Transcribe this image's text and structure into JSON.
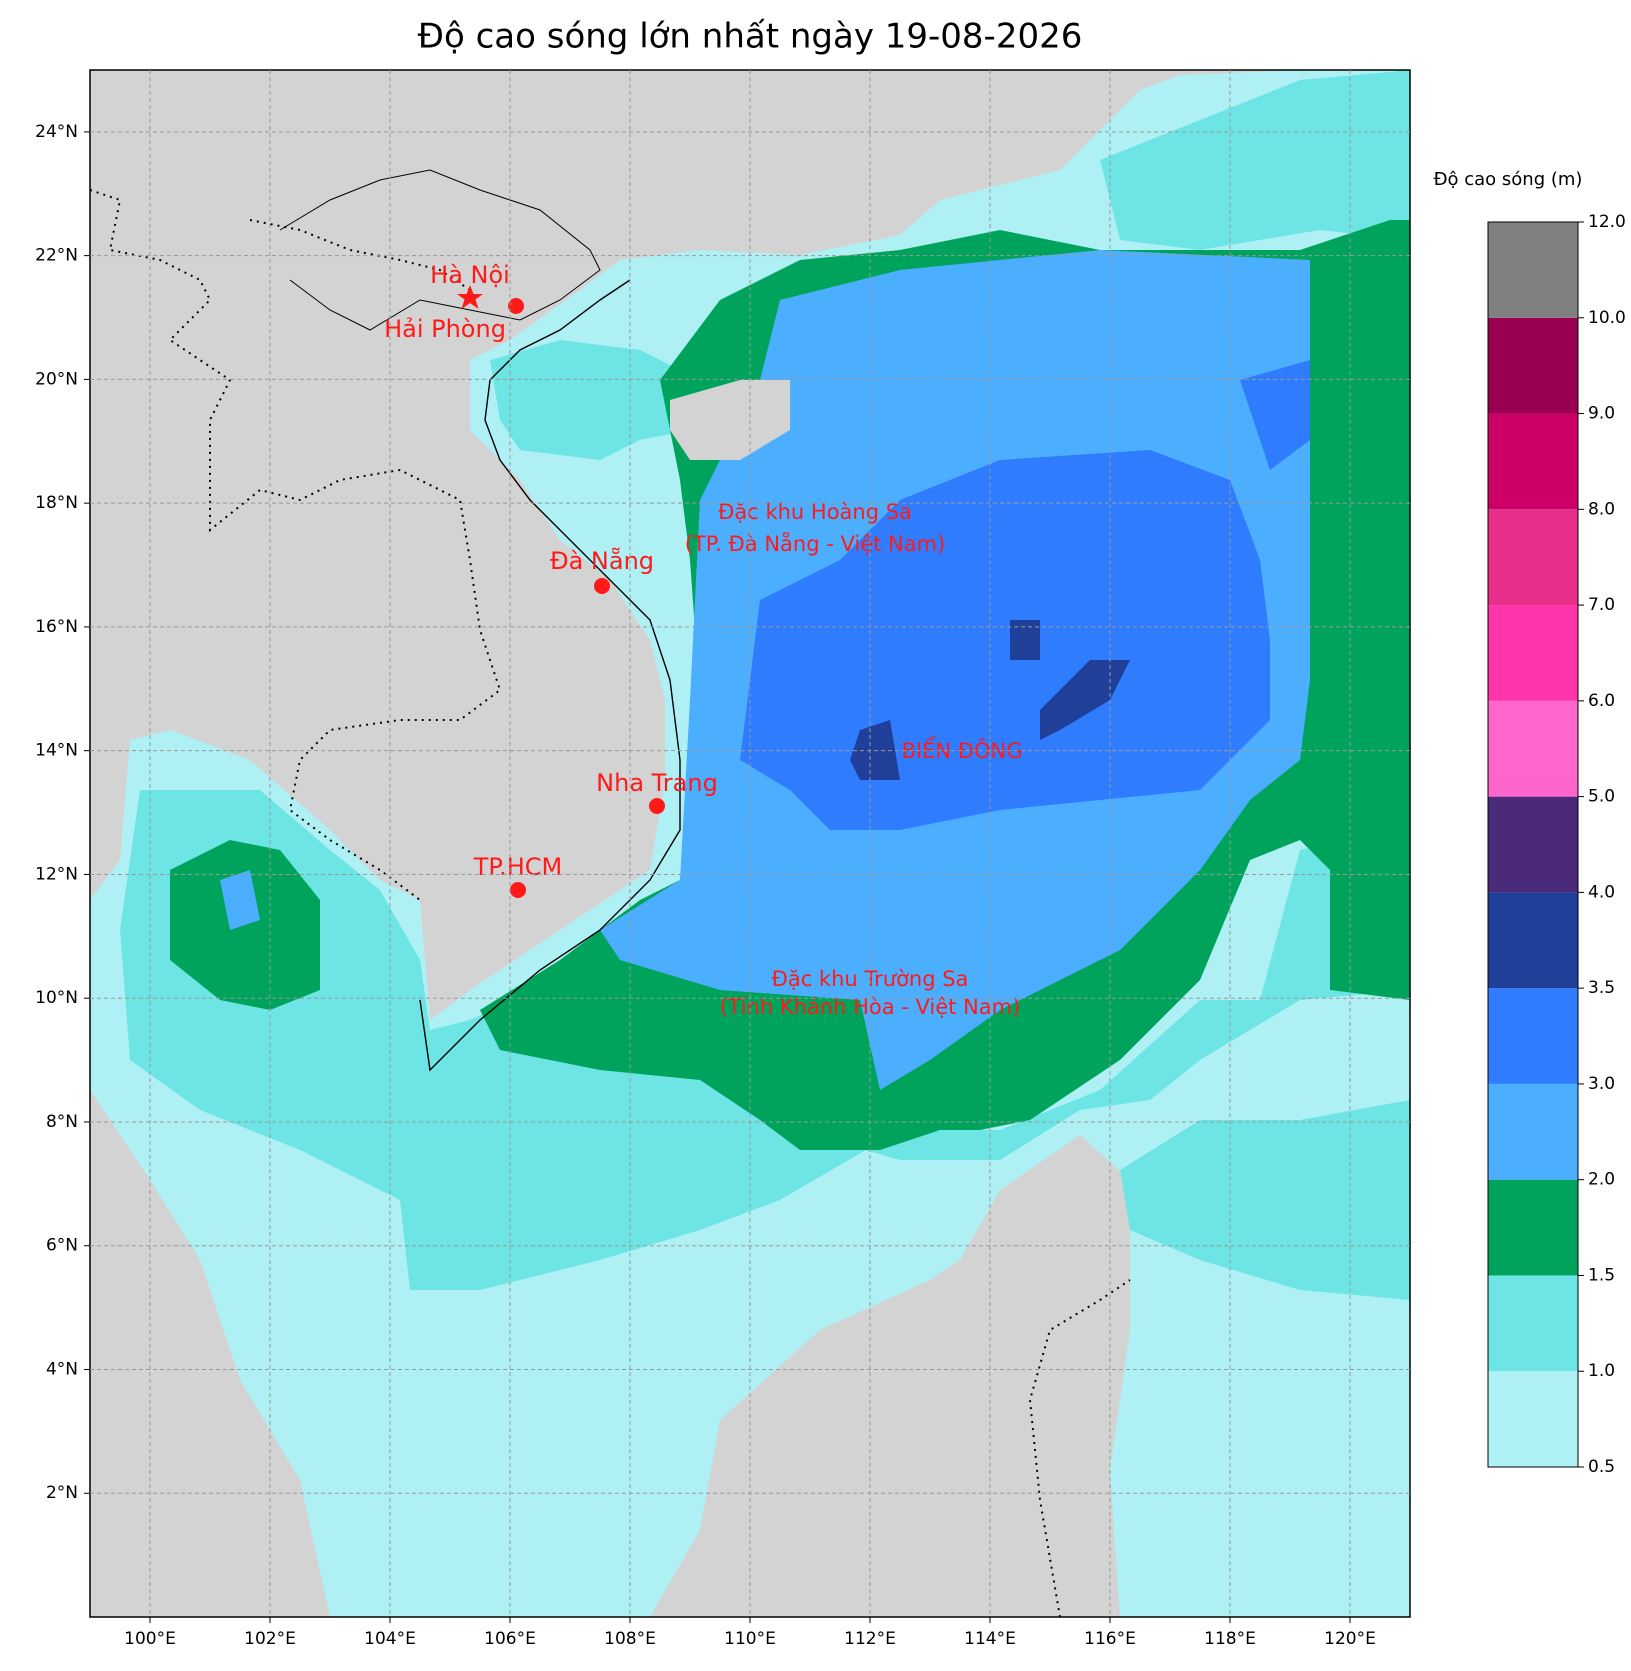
{
  "map": {
    "title": "Độ cao sóng lớn nhất ngày 19-08-2026",
    "xlim": [
      99,
      121
    ],
    "ylim": [
      0,
      25
    ],
    "xticks": [
      {
        "value": 100,
        "label": "100°E"
      },
      {
        "value": 102,
        "label": "102°E"
      },
      {
        "value": 104,
        "label": "104°E"
      },
      {
        "value": 106,
        "label": "106°E"
      },
      {
        "value": 108,
        "label": "108°E"
      },
      {
        "value": 110,
        "label": "110°E"
      },
      {
        "value": 112,
        "label": "112°E"
      },
      {
        "value": 114,
        "label": "114°E"
      },
      {
        "value": 116,
        "label": "116°E"
      },
      {
        "value": 118,
        "label": "118°E"
      },
      {
        "value": 120,
        "label": "120°E"
      }
    ],
    "yticks": [
      {
        "value": 2,
        "label": "2°N"
      },
      {
        "value": 4,
        "label": "4°N"
      },
      {
        "value": 6,
        "label": "6°N"
      },
      {
        "value": 8,
        "label": "8°N"
      },
      {
        "value": 10,
        "label": "10°N"
      },
      {
        "value": 12,
        "label": "12°N"
      },
      {
        "value": 14,
        "label": "14°N"
      },
      {
        "value": 16,
        "label": "16°N"
      },
      {
        "value": 18,
        "label": "18°N"
      },
      {
        "value": 20,
        "label": "20°N"
      },
      {
        "value": 22,
        "label": "22°N"
      },
      {
        "value": 24,
        "label": "24°N"
      }
    ],
    "grid": true,
    "places": [
      "Hà Nội",
      "Hải Phòng",
      "Đà Nẵng",
      "Nha Trang",
      "TP.HCM"
    ],
    "annotations": [
      "Đặc khu Hoàng Sa",
      "(TP. Đà Nẵng - Việt Nam)",
      "Đặc khu Trường Sa",
      "(Tỉnh Khánh Hòa - Việt Nam)",
      "BIỂN ĐÔNG"
    ],
    "colorbar": {
      "label": "Độ cao sóng (m)",
      "ticks": [
        0.5,
        {
          "value": 1,
          "label": "1.0"
        },
        1.5,
        {
          "value": 2,
          "label": "2.0"
        },
        {
          "value": 3,
          "label": "3.0"
        },
        3.5,
        {
          "value": 4,
          "label": "4.0"
        },
        {
          "value": 5,
          "label": "5.0"
        },
        {
          "value": 6,
          "label": "6.0"
        },
        {
          "value": 7,
          "label": "7.0"
        },
        {
          "value": 8,
          "label": "8.0"
        },
        {
          "value": 9,
          "label": "9.0"
        },
        {
          "value": 10,
          "label": "10.0"
        },
        {
          "value": 12,
          "label": "12.0"
        }
      ],
      "colors": [
        "#aff0f5",
        "#6de5e5",
        "#00a35b",
        "#4caeff",
        "#2f7cff",
        "#1f3f99",
        "#4b2a7a",
        "#ff66cc",
        "#ff33aa",
        "#e8308a",
        "#cc0066",
        "#990050",
        "#808080"
      ]
    }
  }
}
